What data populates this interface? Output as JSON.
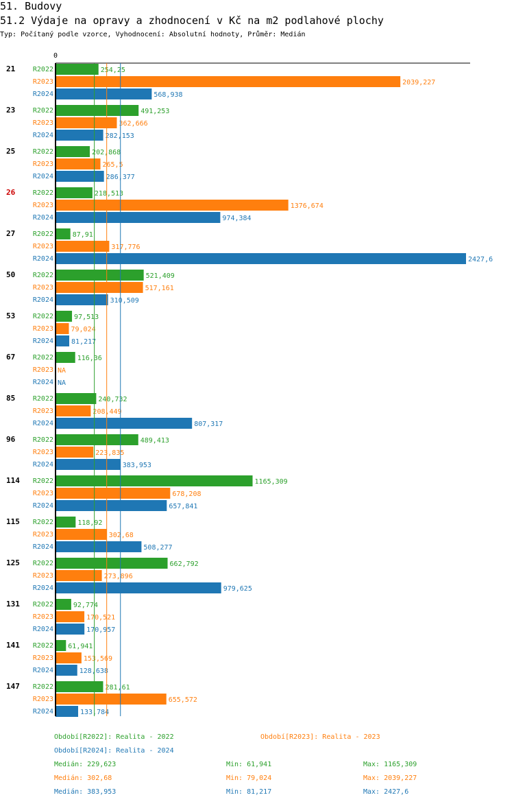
{
  "header": {
    "title": "51. Budovy",
    "subtitle": "51.2 Výdaje na opravy a zhodnocení v Kč na m2 podlahové plochy",
    "meta": "Typ: Počítaný podle vzorce, Vyhodnocení: Absolutní hodnoty, Průměr: Medián"
  },
  "colors": {
    "R2022": "#2ca02c",
    "R2023": "#ff7f0e",
    "R2024": "#1f77b4",
    "highlight": "#cc0000"
  },
  "chart_data": {
    "type": "bar",
    "orientation": "horizontal",
    "x_axis_start_label": "0",
    "xlim": [
      0,
      2427.6
    ],
    "highlighted_group": "26",
    "na_label": "NA",
    "series_names": [
      "R2022",
      "R2023",
      "R2024"
    ],
    "groups": [
      {
        "label": "21",
        "values": [
          {
            "value": 254.25,
            "label": "254,25"
          },
          {
            "value": 2039.227,
            "label": "2039,227"
          },
          {
            "value": 568.938,
            "label": "568,938"
          }
        ]
      },
      {
        "label": "23",
        "values": [
          {
            "value": 491.253,
            "label": "491,253"
          },
          {
            "value": 362.666,
            "label": "362,666"
          },
          {
            "value": 282.153,
            "label": "282,153"
          }
        ]
      },
      {
        "label": "25",
        "values": [
          {
            "value": 202.868,
            "label": "202,868"
          },
          {
            "value": 265.5,
            "label": "265,5"
          },
          {
            "value": 286.377,
            "label": "286,377"
          }
        ]
      },
      {
        "label": "26",
        "values": [
          {
            "value": 218.513,
            "label": "218,513"
          },
          {
            "value": 1376.674,
            "label": "1376,674"
          },
          {
            "value": 974.384,
            "label": "974,384"
          }
        ]
      },
      {
        "label": "27",
        "values": [
          {
            "value": 87.91,
            "label": "87,91"
          },
          {
            "value": 317.776,
            "label": "317,776"
          },
          {
            "value": 2427.6,
            "label": "2427,6"
          }
        ]
      },
      {
        "label": "50",
        "values": [
          {
            "value": 521.409,
            "label": "521,409"
          },
          {
            "value": 517.161,
            "label": "517,161"
          },
          {
            "value": 310.509,
            "label": "310,509"
          }
        ]
      },
      {
        "label": "53",
        "values": [
          {
            "value": 97.513,
            "label": "97,513"
          },
          {
            "value": 79.024,
            "label": "79,024"
          },
          {
            "value": 81.217,
            "label": "81,217"
          }
        ]
      },
      {
        "label": "67",
        "values": [
          {
            "value": 116.36,
            "label": "116,36"
          },
          {
            "value": null,
            "label": "NA"
          },
          {
            "value": null,
            "label": "NA"
          }
        ]
      },
      {
        "label": "85",
        "values": [
          {
            "value": 240.732,
            "label": "240,732"
          },
          {
            "value": 208.449,
            "label": "208,449"
          },
          {
            "value": 807.317,
            "label": "807,317"
          }
        ]
      },
      {
        "label": "96",
        "values": [
          {
            "value": 489.413,
            "label": "489,413"
          },
          {
            "value": 223.835,
            "label": "223,835"
          },
          {
            "value": 383.953,
            "label": "383,953"
          }
        ]
      },
      {
        "label": "114",
        "values": [
          {
            "value": 1165.309,
            "label": "1165,309"
          },
          {
            "value": 678.208,
            "label": "678,208"
          },
          {
            "value": 657.841,
            "label": "657,841"
          }
        ]
      },
      {
        "label": "115",
        "values": [
          {
            "value": 118.92,
            "label": "118,92"
          },
          {
            "value": 302.68,
            "label": "302,68"
          },
          {
            "value": 508.277,
            "label": "508,277"
          }
        ]
      },
      {
        "label": "125",
        "values": [
          {
            "value": 662.792,
            "label": "662,792"
          },
          {
            "value": 273.896,
            "label": "273,896"
          },
          {
            "value": 979.625,
            "label": "979,625"
          }
        ]
      },
      {
        "label": "131",
        "values": [
          {
            "value": 92.774,
            "label": "92,774"
          },
          {
            "value": 170.521,
            "label": "170,521"
          },
          {
            "value": 170.957,
            "label": "170,957"
          }
        ]
      },
      {
        "label": "141",
        "values": [
          {
            "value": 61.941,
            "label": "61,941"
          },
          {
            "value": 153.569,
            "label": "153,569"
          },
          {
            "value": 128.638,
            "label": "128,638"
          }
        ]
      },
      {
        "label": "147",
        "values": [
          {
            "value": 281.61,
            "label": "281,61"
          },
          {
            "value": 655.572,
            "label": "655,572"
          },
          {
            "value": 133.784,
            "label": "133,784"
          }
        ]
      }
    ],
    "median_lines": [
      {
        "series": "R2022",
        "value": 229.623
      },
      {
        "series": "R2023",
        "value": 302.68
      },
      {
        "series": "R2024",
        "value": 383.953
      }
    ]
  },
  "legend": {
    "periods": [
      {
        "series": "R2022",
        "text": "Období[R2022]: Realita - 2022"
      },
      {
        "series": "R2023",
        "text": "Období[R2023]: Realita - 2023"
      },
      {
        "series": "R2024",
        "text": "Období[R2024]: Realita - 2024"
      }
    ],
    "stats": [
      {
        "series": "R2022",
        "median": "Medián: 229,623",
        "min": "Min: 61,941",
        "max": "Max: 1165,309"
      },
      {
        "series": "R2023",
        "median": "Medián: 302,68",
        "min": "Min: 79,024",
        "max": "Max: 2039,227"
      },
      {
        "series": "R2024",
        "median": "Medián: 383,953",
        "min": "Min: 81,217",
        "max": "Max: 2427,6"
      }
    ]
  }
}
